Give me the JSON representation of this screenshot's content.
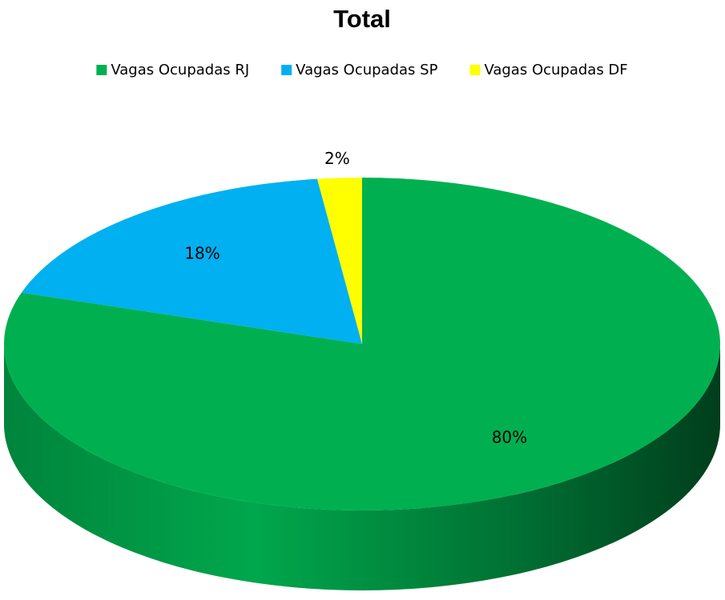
{
  "chart_data": {
    "type": "pie",
    "title": "Total",
    "categories": [
      "Vagas Ocupadas RJ",
      "Vagas Ocupadas SP",
      "Vagas Ocupadas DF"
    ],
    "values": [
      80,
      18,
      2
    ],
    "value_labels": [
      "80%",
      "18%",
      "2%"
    ],
    "colors": [
      "#00b050",
      "#00b0f0",
      "#ffff00"
    ],
    "legend": "top"
  }
}
